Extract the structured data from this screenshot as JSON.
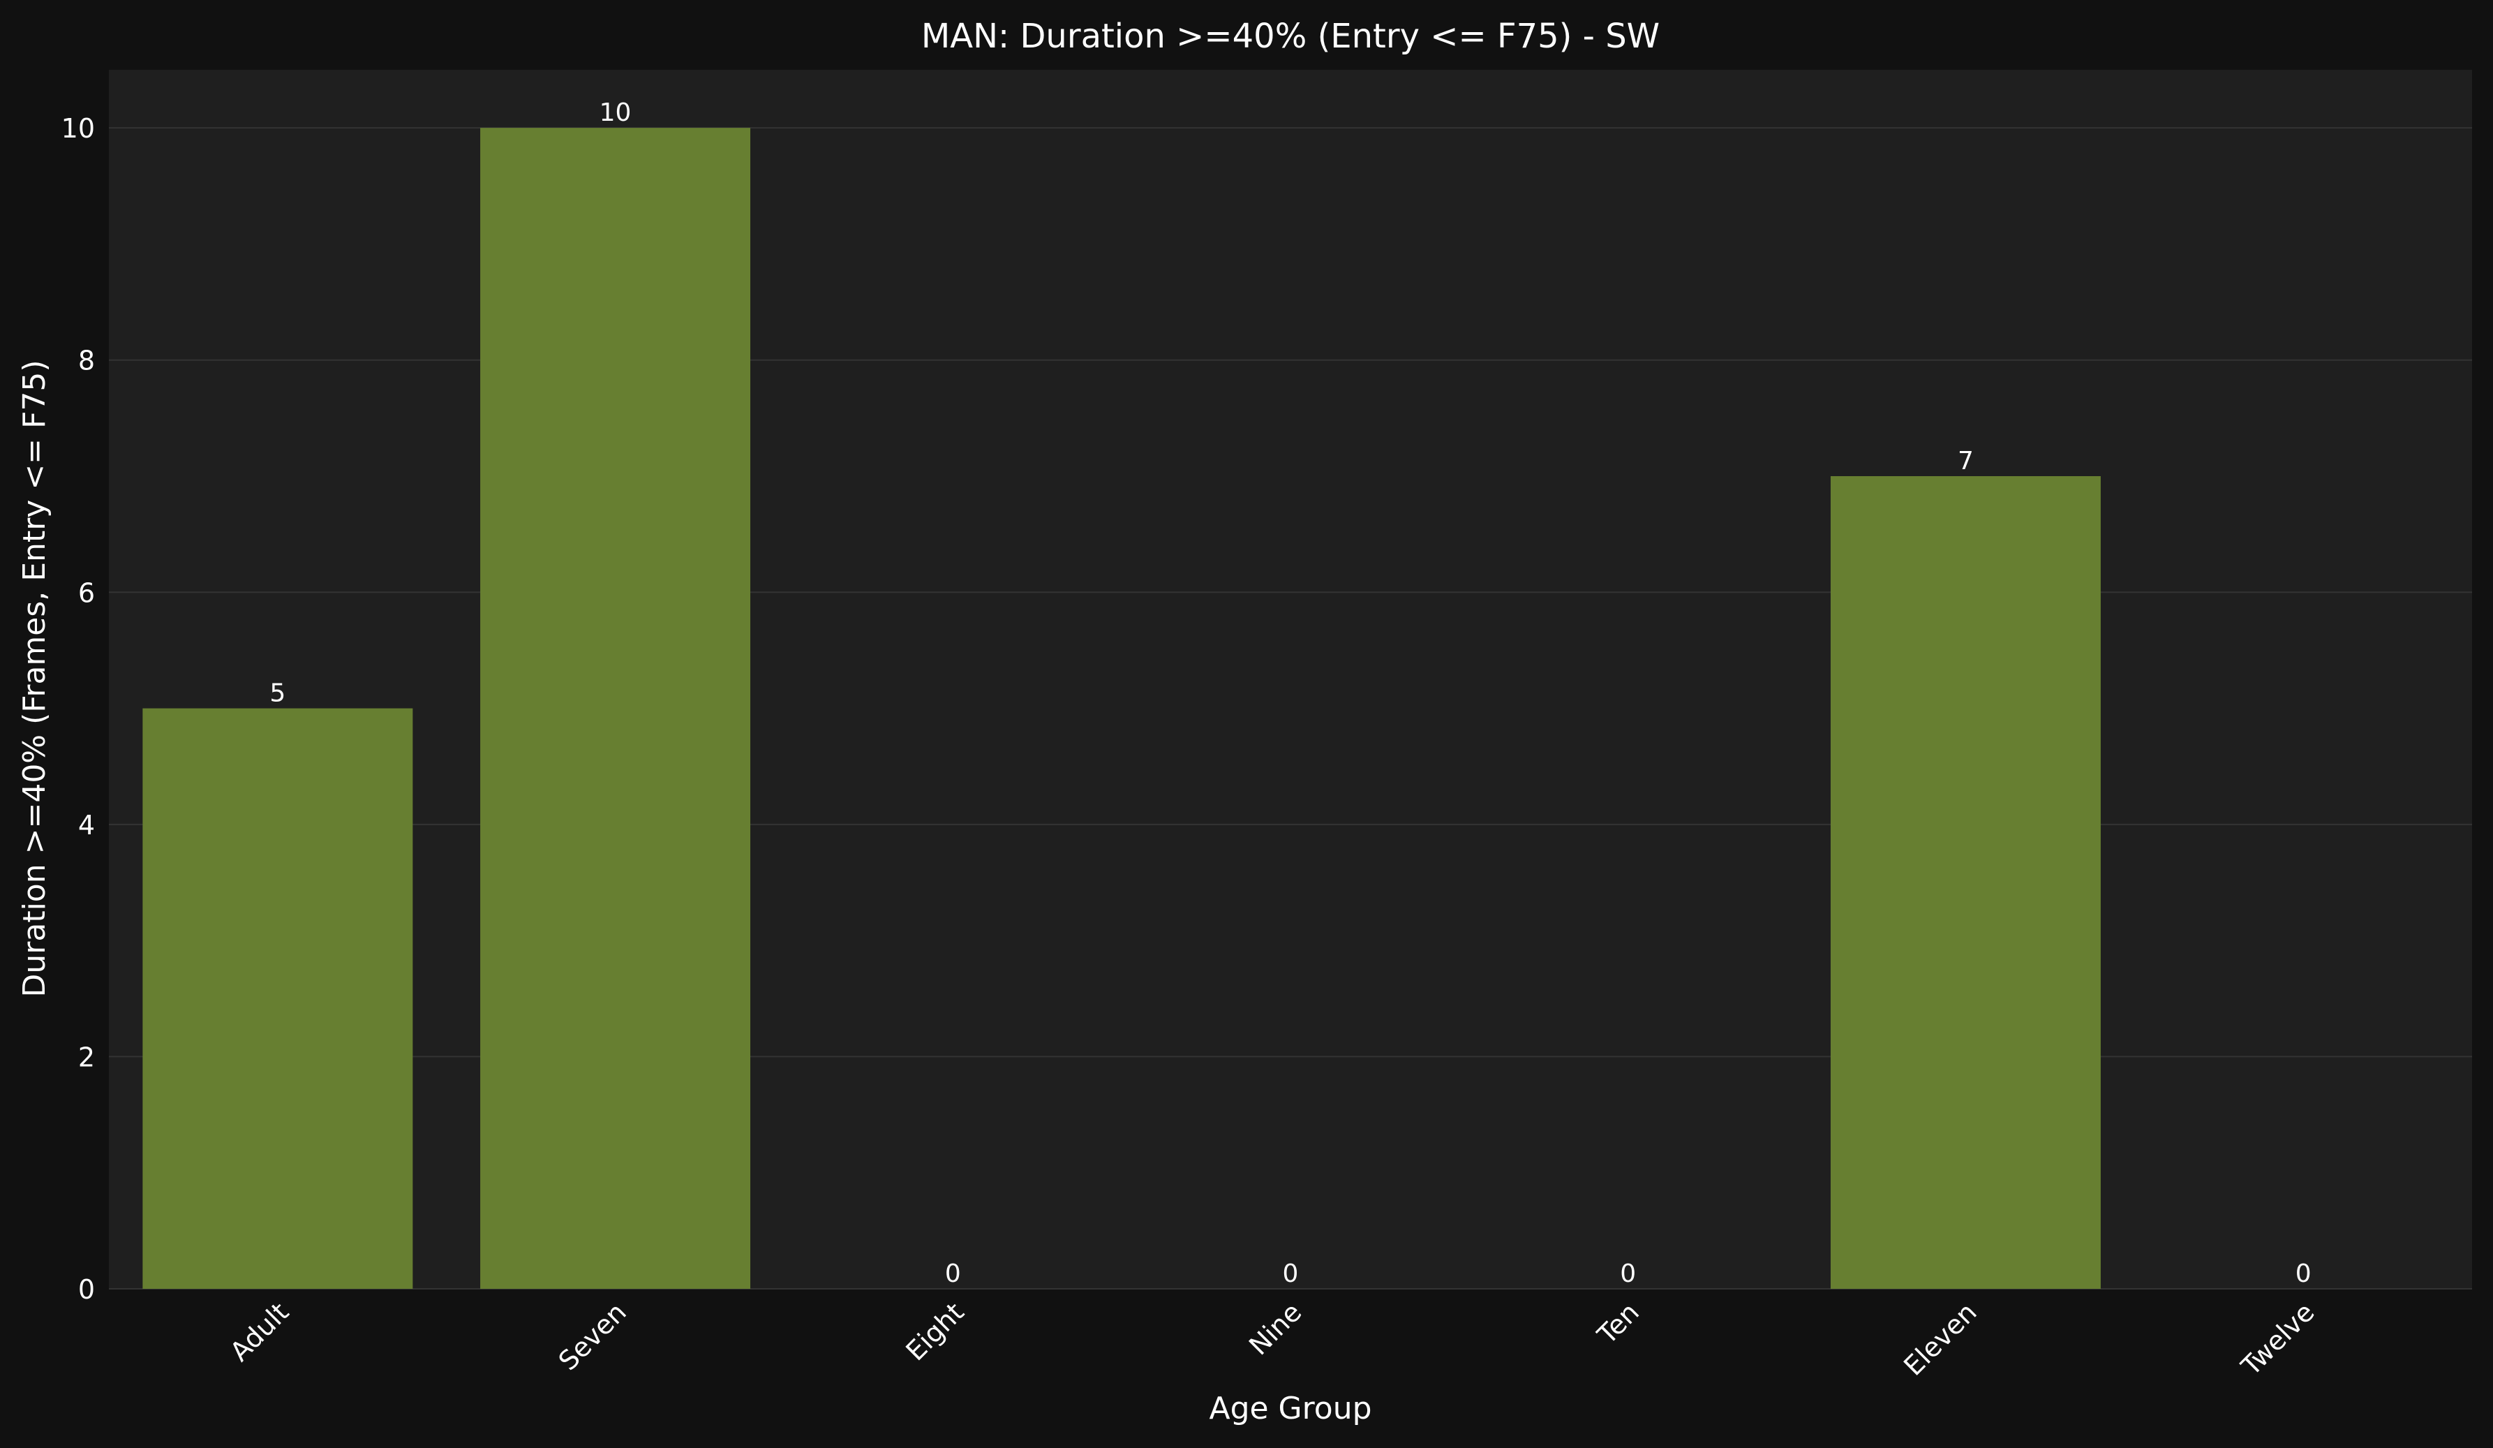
{
  "chart_data": {
    "type": "bar",
    "title": "MAN: Duration >=40% (Entry <= F75) - SW",
    "xlabel": "Age Group",
    "ylabel": "Duration >=40% (Frames, Entry <= F75)",
    "categories": [
      "Adult",
      "Seven",
      "Eight",
      "Nine",
      "Ten",
      "Eleven",
      "Twelve"
    ],
    "values": [
      5,
      10,
      0,
      0,
      0,
      7,
      0
    ],
    "data_labels": [
      "5",
      "10",
      "0",
      "0",
      "0",
      "7",
      "0"
    ],
    "ylim": [
      0,
      10.5
    ],
    "yticks": [
      0,
      2,
      4,
      6,
      8,
      10
    ],
    "ytick_labels": [
      "0",
      "2",
      "4",
      "6",
      "8",
      "10"
    ],
    "grid": "horizontal",
    "legend": "none",
    "colors": {
      "figure_bg": "#111111",
      "plot_bg": "#1f1f1f",
      "bar": "#677f31",
      "grid": "#333333",
      "text": "#ffffff"
    }
  }
}
